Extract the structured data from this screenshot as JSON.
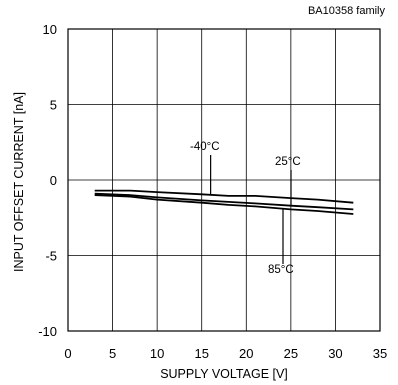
{
  "chart_data": {
    "type": "line",
    "subtitle": "BA10358  family",
    "xlabel": "SUPPLY VOLTAGE [V]",
    "ylabel": "INPUT OFFSET CURRENT [nA]",
    "xlim": [
      0,
      35
    ],
    "ylim": [
      -10,
      10
    ],
    "xticks": [
      0,
      5,
      10,
      15,
      20,
      25,
      30,
      35
    ],
    "yticks": [
      10,
      5,
      0,
      -5,
      -10
    ],
    "grid": true,
    "series": [
      {
        "name": "-40°C",
        "x": [
          3,
          7,
          10,
          15,
          18,
          21,
          25,
          28,
          32
        ],
        "values": [
          -0.7,
          -0.7,
          -0.8,
          -0.95,
          -1.05,
          -1.05,
          -1.2,
          -1.3,
          -1.5
        ]
      },
      {
        "name": "25°C",
        "x": [
          3,
          7,
          10,
          15,
          18,
          21,
          25,
          28,
          32
        ],
        "values": [
          -0.9,
          -1.0,
          -1.15,
          -1.35,
          -1.45,
          -1.55,
          -1.7,
          -1.8,
          -1.95
        ]
      },
      {
        "name": "85°C",
        "x": [
          3,
          7,
          10,
          15,
          18,
          21,
          25,
          28,
          32
        ],
        "values": [
          -1.0,
          -1.1,
          -1.3,
          -1.5,
          -1.65,
          -1.75,
          -1.95,
          -2.05,
          -2.25
        ]
      }
    ]
  }
}
